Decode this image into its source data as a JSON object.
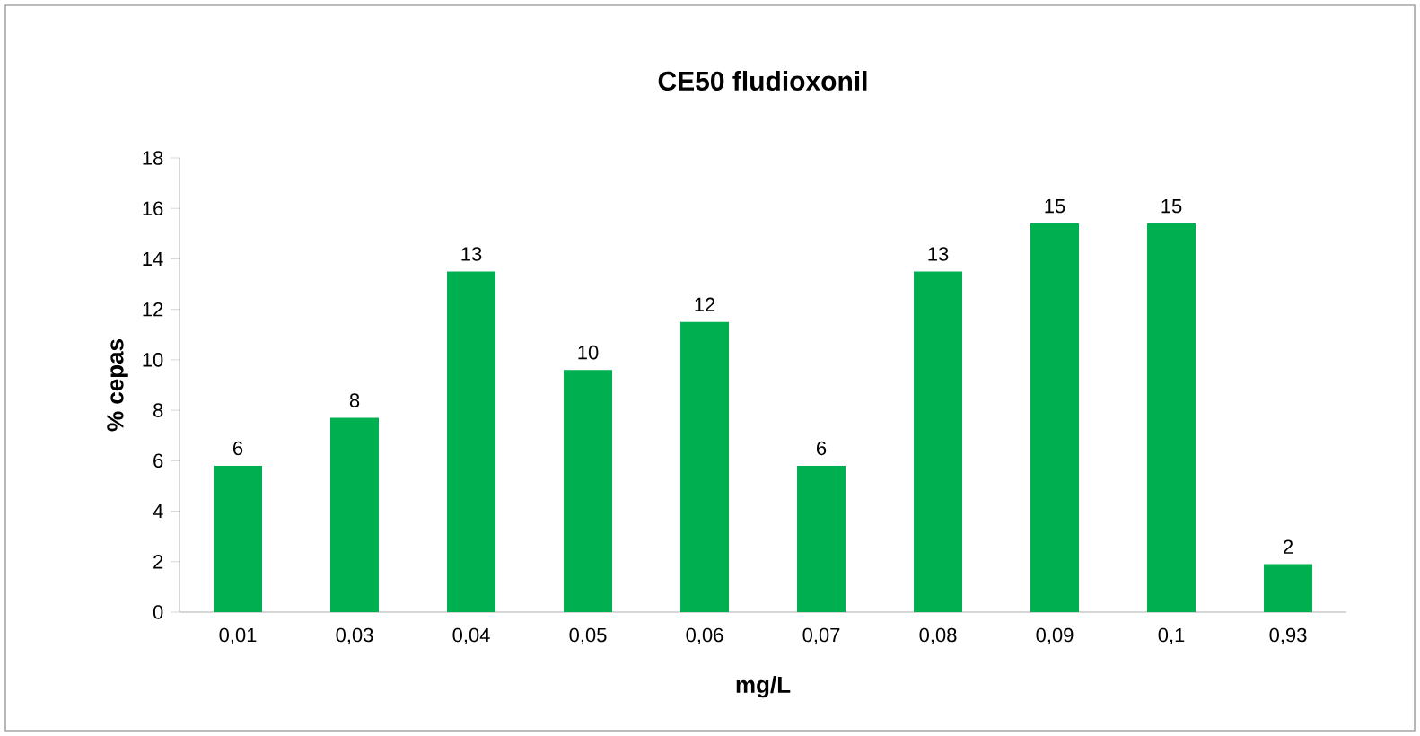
{
  "chart_data": {
    "type": "bar",
    "title": "CE50 fludioxonil",
    "xlabel": "mg/L",
    "ylabel": "% cepas",
    "categories": [
      "0,01",
      "0,03",
      "0,04",
      "0,05",
      "0,06",
      "0,07",
      "0,08",
      "0,09",
      "0,1",
      "0,93"
    ],
    "values": [
      5.8,
      7.7,
      13.5,
      9.6,
      11.5,
      5.8,
      13.5,
      15.4,
      15.4,
      1.9
    ],
    "value_labels": [
      "6",
      "8",
      "13",
      "10",
      "12",
      "6",
      "13",
      "15",
      "15",
      "2"
    ],
    "color": "#00b050",
    "ylim": [
      0,
      18
    ],
    "yticks": [
      0,
      2,
      4,
      6,
      8,
      10,
      12,
      14,
      16,
      18
    ]
  }
}
